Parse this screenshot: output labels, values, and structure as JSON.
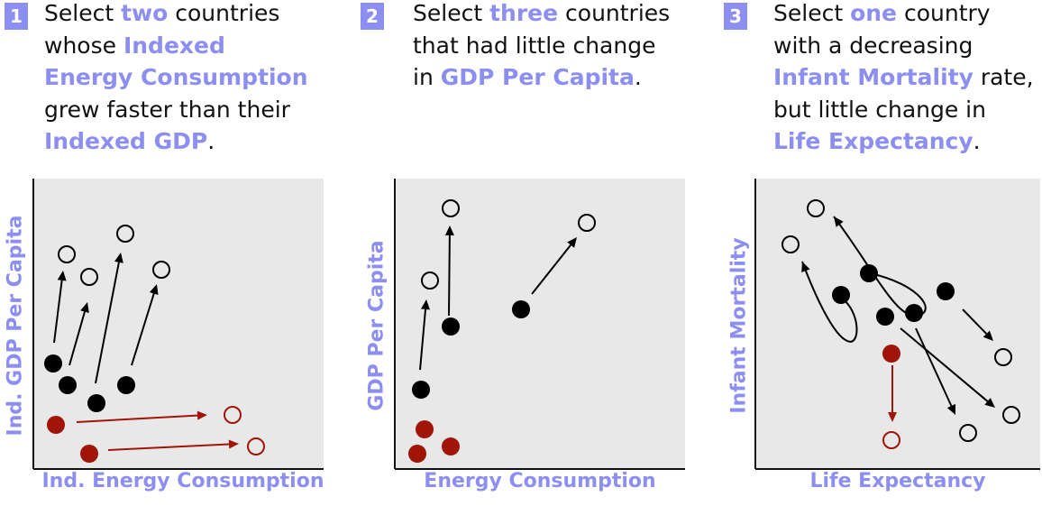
{
  "panels": [
    {
      "number": "1",
      "prompt_lines": [
        [
          {
            "t": "Select "
          },
          {
            "t": "two",
            "hl": true
          },
          {
            "t": " countries"
          }
        ],
        [
          {
            "t": "whose "
          },
          {
            "t": "Indexed",
            "hl": true
          }
        ],
        [
          {
            "t": "Energy Consumption",
            "hl": true
          }
        ],
        [
          {
            "t": "grew faster than their"
          }
        ],
        [
          {
            "t": "Indexed GDP",
            "hl": true
          },
          {
            "t": "."
          }
        ]
      ],
      "xlabel": "Ind. Energy Consumption",
      "ylabel": "Ind. GDP Per Capita"
    },
    {
      "number": "2",
      "prompt_lines": [
        [
          {
            "t": "Select "
          },
          {
            "t": "three",
            "hl": true
          },
          {
            "t": " countries"
          }
        ],
        [
          {
            "t": "that had little change"
          }
        ],
        [
          {
            "t": "in "
          },
          {
            "t": "GDP Per Capita",
            "hl": true
          },
          {
            "t": "."
          }
        ]
      ],
      "xlabel": "Energy Consumption",
      "ylabel": "GDP Per Capita"
    },
    {
      "number": "3",
      "prompt_lines": [
        [
          {
            "t": "Select "
          },
          {
            "t": "one",
            "hl": true
          },
          {
            "t": " country"
          }
        ],
        [
          {
            "t": "with a decreasing"
          }
        ],
        [
          {
            "t": "Infant Mortality",
            "hl": true
          },
          {
            "t": " rate,"
          }
        ],
        [
          {
            "t": "but little change in"
          }
        ],
        [
          {
            "t": "Life Expectancy",
            "hl": true
          },
          {
            "t": "."
          }
        ]
      ],
      "xlabel": "Life Expectancy",
      "ylabel": "Infant Mortality"
    }
  ],
  "colors": {
    "accent": "#8c8ff0",
    "highlight": "#a01508",
    "dot": "#000000",
    "plot_bg": "#e8e8e8"
  }
}
